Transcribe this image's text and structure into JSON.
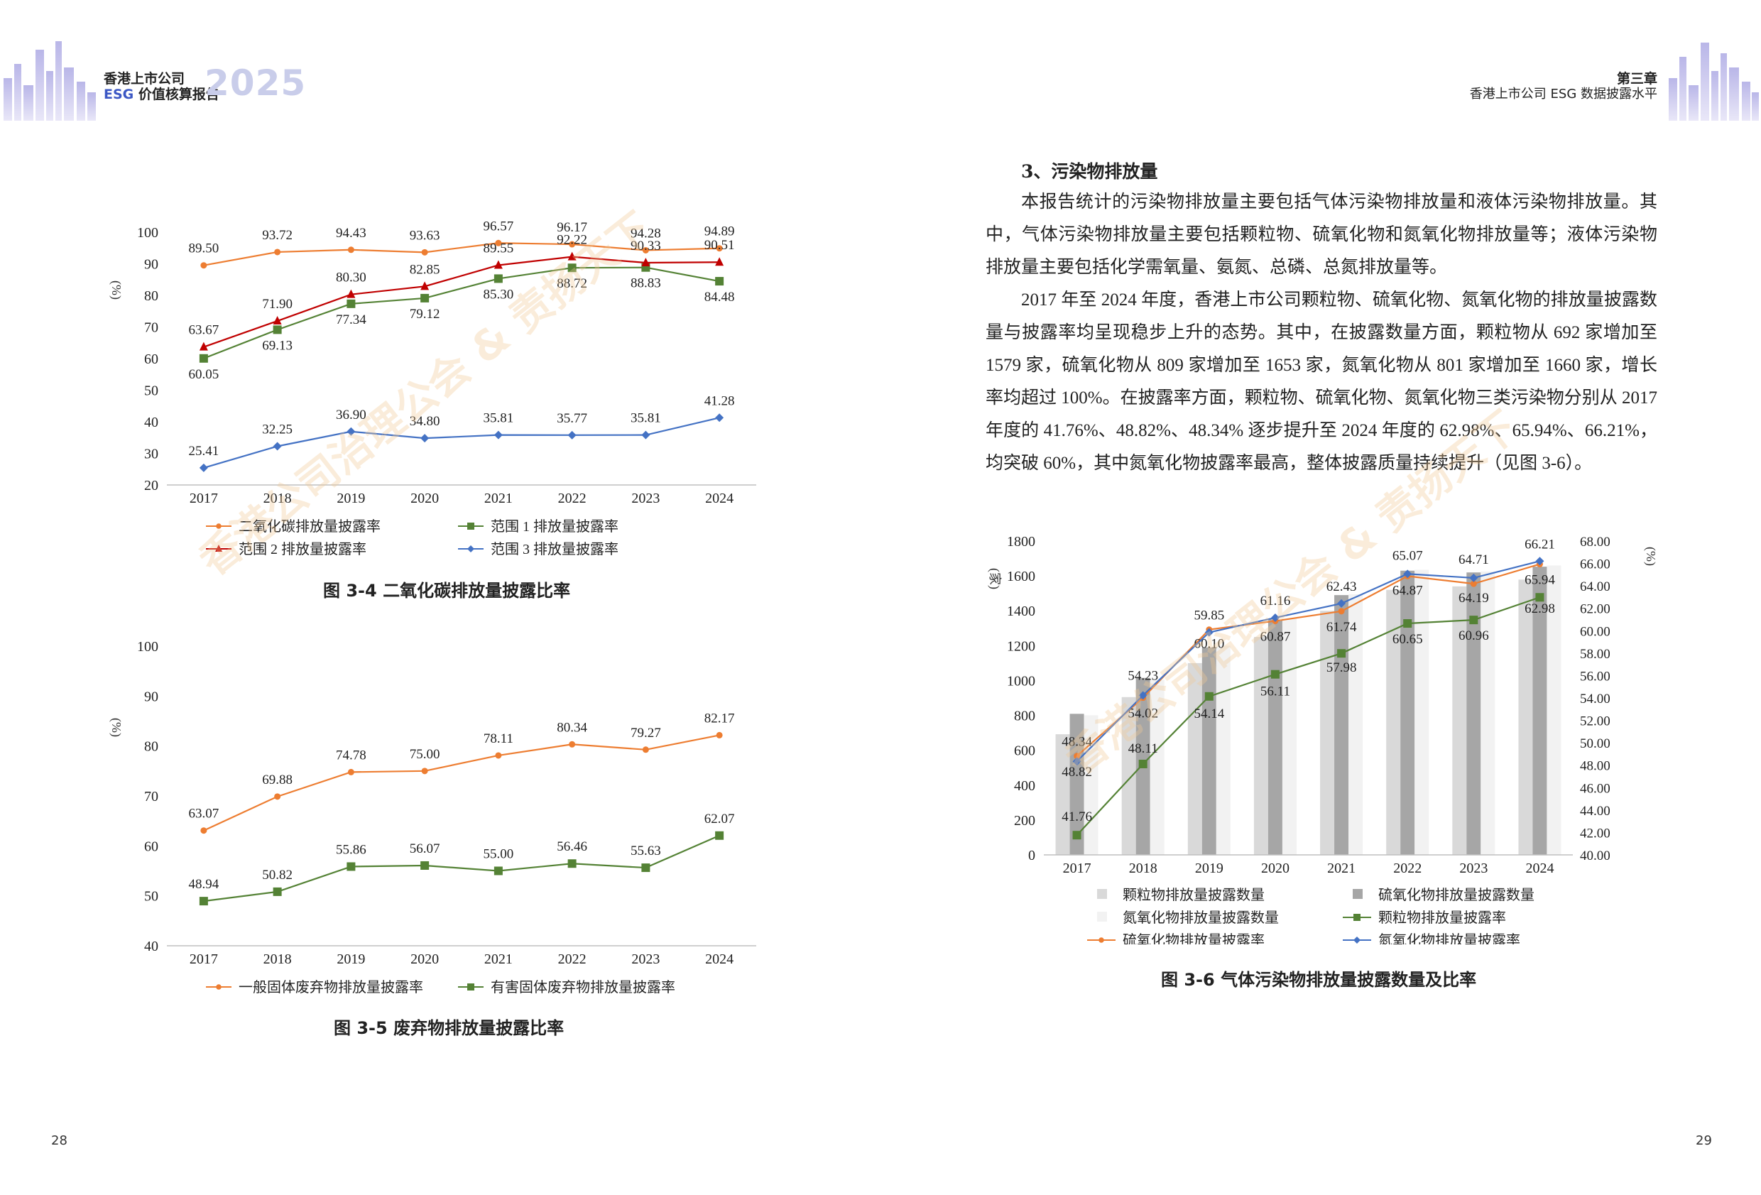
{
  "header": {
    "brand_line1": "香港上市公司",
    "brand_esg": "ESG",
    "brand_line2_rest": " 价值核算报告",
    "year": "2025",
    "chapter": "第三章",
    "chapter_subtitle": "香港上市公司 ESG 数据披露水平"
  },
  "page_left": "28",
  "page_right": "29",
  "watermark": "香港公司治理公会 & 责扬天下",
  "section": {
    "title": "3、污染物排放量",
    "paragraphs": [
      "本报告统计的污染物排放量主要包括气体污染物排放量和液体污染物排放量。其中，气体污染物排放量主要包括颗粒物、硫氧化物和氮氧化物排放量等；液体污染物排放量主要包括化学需氧量、氨氮、总磷、总氮排放量等。",
      "2017 年至 2024 年度，香港上市公司颗粒物、硫氧化物、氮氧化物的排放量披露数量与披露率均呈现稳步上升的态势。其中，在披露数量方面，颗粒物从 692 家增加至 1579 家，硫氧化物从 809 家增加至 1653 家，氮氧化物从 801 家增加至 1660 家，增长率均超过 100%。在披露率方面，颗粒物、硫氧化物、氮氧化物三类污染物分别从 2017 年度的 41.76%、48.82%、48.34% 逐步提升至 2024 年度的 62.98%、65.94%、66.21%，均突破 60%，其中氮氧化物披露率最高，整体披露质量持续提升（见图 3-6）。"
    ]
  },
  "chart_data": [
    {
      "type": "line",
      "caption": "图 3-4 二氧化碳排放量披露比率",
      "ylabel": "(%)",
      "ylim": [
        20,
        100
      ],
      "yticks": [
        20,
        30,
        40,
        50,
        60,
        70,
        80,
        90,
        100
      ],
      "categories": [
        "2017",
        "2018",
        "2019",
        "2020",
        "2021",
        "2022",
        "2023",
        "2024"
      ],
      "legend_position": "bottom",
      "series": [
        {
          "name": "二氧化碳排放量披露率",
          "color": "#ed7d31",
          "marker": "circle",
          "values": [
            89.5,
            93.72,
            94.43,
            93.63,
            96.57,
            96.17,
            94.28,
            94.89
          ]
        },
        {
          "name": "范围 1 排放量披露率",
          "color": "#548235",
          "marker": "square",
          "values": [
            60.05,
            69.13,
            77.34,
            79.12,
            85.3,
            88.72,
            88.83,
            84.48
          ]
        },
        {
          "name": "范围 2 排放量披露率",
          "color": "#c00000",
          "marker": "triangle",
          "values": [
            63.67,
            71.9,
            80.3,
            82.85,
            89.55,
            92.22,
            90.33,
            90.51
          ]
        },
        {
          "name": "范围 3 排放量披露率",
          "color": "#4472c4",
          "marker": "diamond",
          "values": [
            25.41,
            32.25,
            36.9,
            34.8,
            35.81,
            35.77,
            35.81,
            41.28
          ]
        }
      ]
    },
    {
      "type": "line",
      "caption": "图 3-5 废弃物排放量披露比率",
      "ylabel": "(%)",
      "ylim": [
        40,
        100
      ],
      "yticks": [
        40,
        50,
        60,
        70,
        80,
        90,
        100
      ],
      "categories": [
        "2017",
        "2018",
        "2019",
        "2020",
        "2021",
        "2022",
        "2023",
        "2024"
      ],
      "legend_position": "bottom",
      "series": [
        {
          "name": "一般固体废弃物排放量披露率",
          "color": "#ed7d31",
          "marker": "circle",
          "values": [
            63.07,
            69.88,
            74.78,
            75.0,
            78.11,
            80.34,
            79.27,
            82.17
          ]
        },
        {
          "name": "有害固体废弃物排放量披露率",
          "color": "#548235",
          "marker": "square",
          "values": [
            48.94,
            50.82,
            55.86,
            56.07,
            55.0,
            56.46,
            55.63,
            62.07
          ]
        }
      ]
    },
    {
      "type": "bar",
      "caption": "图 3-6 气体污染物排放量披露数量及比率",
      "ylabel_left": "(家)",
      "ylabel_right": "(%)",
      "ylim_left": [
        0,
        1800
      ],
      "yticks_left": [
        0,
        200,
        400,
        600,
        800,
        1000,
        1200,
        1400,
        1600,
        1800
      ],
      "ylim_right": [
        40,
        68
      ],
      "yticks_right": [
        "40.00",
        "42.00",
        "44.00",
        "46.00",
        "48.00",
        "50.00",
        "52.00",
        "54.00",
        "56.00",
        "58.00",
        "60.00",
        "62.00",
        "64.00",
        "66.00",
        "68.00"
      ],
      "categories": [
        "2017",
        "2018",
        "2019",
        "2020",
        "2021",
        "2022",
        "2023",
        "2024"
      ],
      "legend_position": "bottom",
      "bar_series": [
        {
          "name": "颗粒物排放量披露数量",
          "color": "#d9d9d9",
          "values": [
            692,
            905,
            1100,
            1250,
            1400,
            1520,
            1540,
            1579
          ]
        },
        {
          "name": "硫氧化物排放量披露数量",
          "color": "#a6a6a6",
          "values": [
            809,
            1015,
            1190,
            1350,
            1490,
            1630,
            1620,
            1653
          ]
        },
        {
          "name": "氮氧化物排放量披露数量",
          "color": "#f2f2f2",
          "values": [
            801,
            1005,
            1200,
            1355,
            1495,
            1635,
            1625,
            1660
          ]
        }
      ],
      "line_series": [
        {
          "name": "颗粒物排放量披露率",
          "color": "#548235",
          "marker": "square",
          "values": [
            41.76,
            48.11,
            54.14,
            56.11,
            57.98,
            60.65,
            60.96,
            62.98
          ]
        },
        {
          "name": "硫氧化物排放量披露率",
          "color": "#ed7d31",
          "marker": "circle",
          "values": [
            48.82,
            54.02,
            60.1,
            60.87,
            61.74,
            64.87,
            64.19,
            65.94
          ]
        },
        {
          "name": "氮氧化物排放量披露率",
          "color": "#4472c4",
          "marker": "diamond",
          "values": [
            48.34,
            54.23,
            59.85,
            61.16,
            62.43,
            65.07,
            64.71,
            66.21
          ]
        }
      ]
    }
  ]
}
